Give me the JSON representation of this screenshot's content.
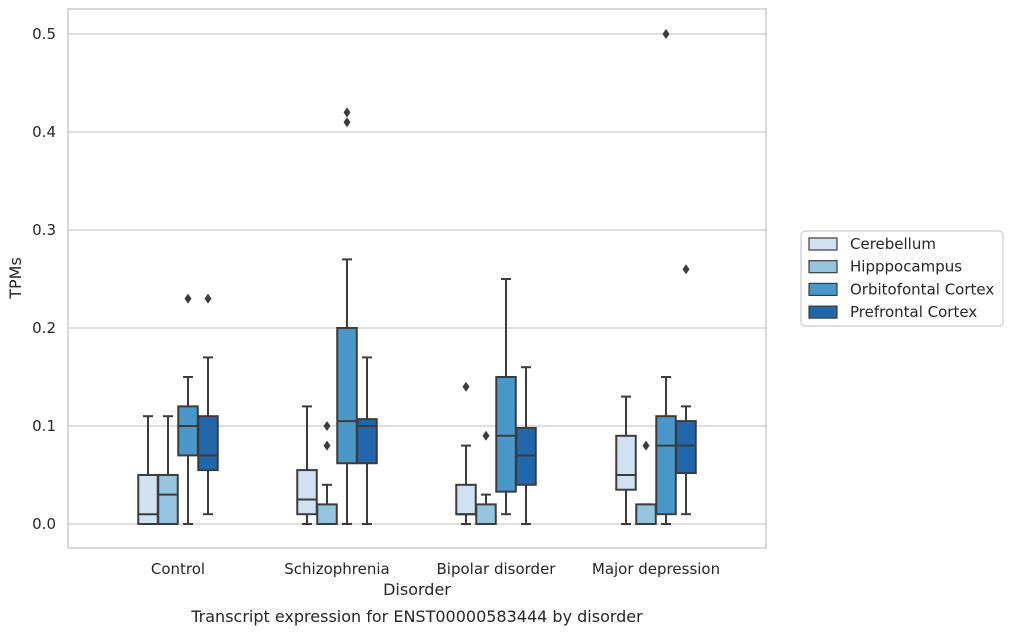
{
  "caption": "Transcript expression for ENST00000583444 by disorder",
  "chart_data": {
    "type": "box",
    "title": "",
    "xlabel": "Disorder",
    "ylabel": "TPMs",
    "categories": [
      "Control",
      "Schizophrenia",
      "Bipolar disorder",
      "Major depression"
    ],
    "ylim": [
      -0.025,
      0.525
    ],
    "yticks": [
      "0.0",
      "0.1",
      "0.2",
      "0.3",
      "0.4",
      "0.5"
    ],
    "grid": true,
    "legend_position": "right",
    "series": [
      {
        "name": "Cerebellum",
        "color": "#d0e1f2",
        "boxes": [
          {
            "whislo": 0.0,
            "q1": 0.0,
            "med": 0.01,
            "q3": 0.05,
            "whishi": 0.11,
            "fliers": []
          },
          {
            "whislo": 0.0,
            "q1": 0.01,
            "med": 0.025,
            "q3": 0.055,
            "whishi": 0.12,
            "fliers": []
          },
          {
            "whislo": 0.0,
            "q1": 0.01,
            "med": 0.01,
            "q3": 0.04,
            "whishi": 0.08,
            "fliers": [
              0.14
            ]
          },
          {
            "whislo": 0.0,
            "q1": 0.035,
            "med": 0.05,
            "q3": 0.09,
            "whishi": 0.13,
            "fliers": []
          }
        ]
      },
      {
        "name": "Hipppocampus",
        "color": "#94c4df",
        "boxes": [
          {
            "whislo": 0.0,
            "q1": 0.0,
            "med": 0.03,
            "q3": 0.05,
            "whishi": 0.11,
            "fliers": []
          },
          {
            "whislo": 0.0,
            "q1": 0.0,
            "med": 0.0,
            "q3": 0.02,
            "whishi": 0.04,
            "fliers": [
              0.08,
              0.1
            ]
          },
          {
            "whislo": 0.0,
            "q1": 0.0,
            "med": 0.0,
            "q3": 0.02,
            "whishi": 0.03,
            "fliers": [
              0.09
            ]
          },
          {
            "whislo": 0.0,
            "q1": 0.0,
            "med": 0.0,
            "q3": 0.02,
            "whishi": 0.02,
            "fliers": [
              0.08
            ]
          }
        ]
      },
      {
        "name": "Orbitofontal Cortex",
        "color": "#4a98c9",
        "boxes": [
          {
            "whislo": 0.0,
            "q1": 0.07,
            "med": 0.1,
            "q3": 0.12,
            "whishi": 0.15,
            "fliers": [
              0.23
            ]
          },
          {
            "whislo": 0.0,
            "q1": 0.062,
            "med": 0.105,
            "q3": 0.2,
            "whishi": 0.27,
            "fliers": [
              0.41,
              0.42
            ]
          },
          {
            "whislo": 0.01,
            "q1": 0.033,
            "med": 0.09,
            "q3": 0.15,
            "whishi": 0.25,
            "fliers": []
          },
          {
            "whislo": 0.0,
            "q1": 0.01,
            "med": 0.08,
            "q3": 0.11,
            "whishi": 0.15,
            "fliers": [
              0.5
            ]
          }
        ]
      },
      {
        "name": "Prefrontal Cortex",
        "color": "#2266ac",
        "boxes": [
          {
            "whislo": 0.01,
            "q1": 0.055,
            "med": 0.07,
            "q3": 0.11,
            "whishi": 0.17,
            "fliers": [
              0.23
            ]
          },
          {
            "whislo": 0.0,
            "q1": 0.062,
            "med": 0.1,
            "q3": 0.107,
            "whishi": 0.17,
            "fliers": []
          },
          {
            "whislo": 0.0,
            "q1": 0.04,
            "med": 0.07,
            "q3": 0.098,
            "whishi": 0.16,
            "fliers": []
          },
          {
            "whislo": 0.01,
            "q1": 0.052,
            "med": 0.08,
            "q3": 0.105,
            "whishi": 0.12,
            "fliers": [
              0.26
            ]
          }
        ]
      }
    ]
  }
}
